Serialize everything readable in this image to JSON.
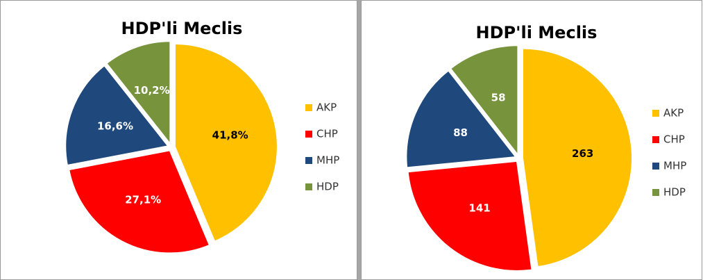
{
  "chart_data": [
    {
      "type": "pie",
      "title": "HDP'li Meclis",
      "categories": [
        "AKP",
        "CHP",
        "MHP",
        "HDP"
      ],
      "values": [
        41.8,
        27.1,
        16.6,
        10.2
      ],
      "value_labels": [
        "41,8%",
        "27,1%",
        "16,6%",
        "10,2%"
      ],
      "colors": [
        "#ffc000",
        "#ff0000",
        "#1f497d",
        "#77933c"
      ],
      "label_colors": [
        "#000000",
        "#ffffff",
        "#ffffff",
        "#ffffff"
      ],
      "legend": "right"
    },
    {
      "type": "pie",
      "title": "HDP'li Meclis",
      "categories": [
        "AKP",
        "CHP",
        "MHP",
        "HDP"
      ],
      "values": [
        263,
        141,
        88,
        58
      ],
      "colors": [
        "#ffc000",
        "#ff0000",
        "#1f497d",
        "#77933c"
      ],
      "label_colors": [
        "#000000",
        "#ffffff",
        "#ffffff",
        "#ffffff"
      ],
      "legend": "right"
    }
  ]
}
